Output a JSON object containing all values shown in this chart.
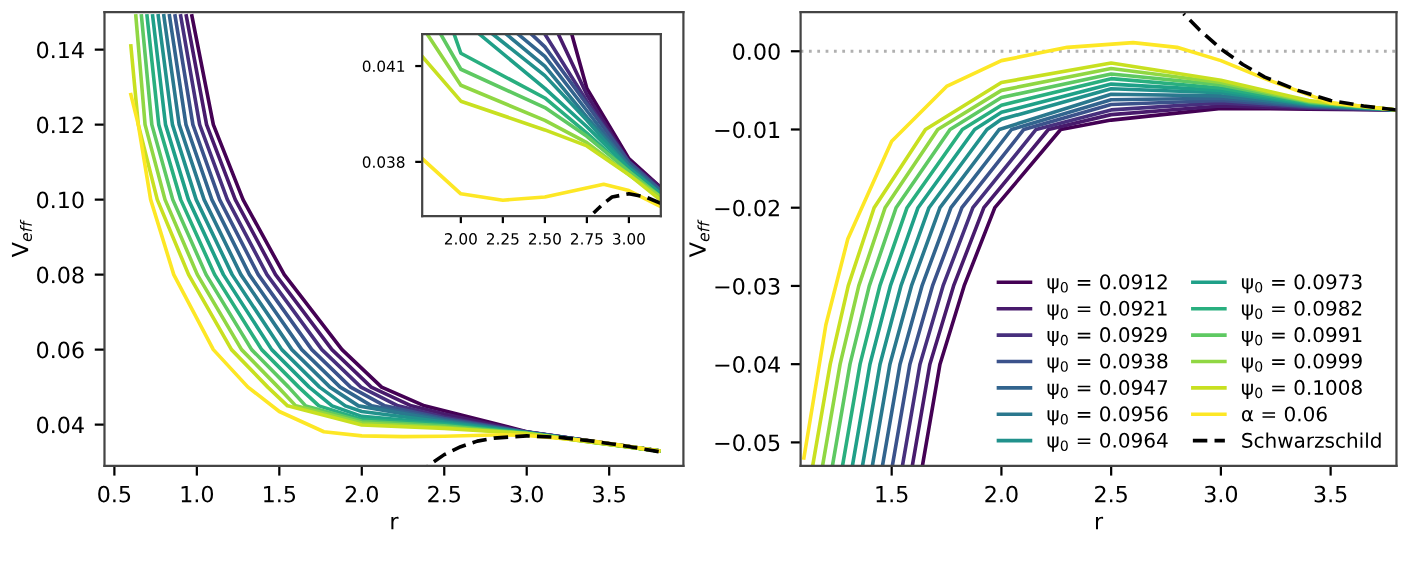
{
  "chart_data": [
    {
      "type": "line",
      "xlabel": "r",
      "ylabel": "V$_{eff}$",
      "xlim": [
        0.44,
        3.95
      ],
      "ylim": [
        0.029,
        0.15
      ],
      "xticks": [
        {
          "value": 0.5,
          "label": "0.5"
        },
        {
          "value": 1,
          "label": "1.0"
        },
        {
          "value": 1.5,
          "label": "1.5"
        },
        {
          "value": 2,
          "label": "2.0"
        },
        {
          "value": 2.5,
          "label": "2.5"
        },
        {
          "value": 3,
          "label": "3.0"
        },
        {
          "value": 3.5,
          "label": "3.5"
        }
      ],
      "yticks": [
        0.04,
        0.06,
        0.08,
        {
          "value": 0.1,
          "label": "0.10"
        },
        0.12,
        0.14
      ],
      "grid": false,
      "legend": false,
      "line_style": "solid",
      "marker": "none",
      "series": [
        {
          "color": "#440154",
          "x": [
            0.97,
            1.1,
            1.28,
            1.53,
            1.88,
            2.12,
            2.38,
            2.5,
            3.0,
            3.8
          ],
          "values": [
            0.149,
            0.12,
            0.1,
            0.08,
            0.06,
            0.05,
            0.045,
            0.0437,
            0.0381,
            0.033
          ]
        },
        {
          "color": "#481a6c",
          "x": [
            0.936,
            1.059,
            1.233,
            1.477,
            1.819,
            2.057,
            2.3,
            2.5,
            3.0,
            3.8
          ],
          "values": [
            0.149,
            0.12,
            0.1,
            0.08,
            0.06,
            0.05,
            0.045,
            0.0428,
            0.038,
            0.033
          ]
        },
        {
          "color": "#472f7d",
          "x": [
            0.902,
            1.017,
            1.185,
            1.425,
            1.758,
            1.995,
            2.22,
            2.5,
            3.0,
            3.8
          ],
          "values": [
            0.149,
            0.12,
            0.1,
            0.08,
            0.06,
            0.05,
            0.045,
            0.042,
            0.038,
            0.033
          ]
        },
        {
          "color": "#3b528b",
          "x": [
            0.868,
            0.976,
            1.138,
            1.372,
            1.697,
            1.932,
            2.14,
            2.5,
            3.0,
            3.8
          ],
          "values": [
            0.149,
            0.12,
            0.1,
            0.08,
            0.06,
            0.05,
            0.045,
            0.0416,
            0.038,
            0.033
          ]
        },
        {
          "color": "#32648e",
          "x": [
            0.834,
            0.934,
            1.091,
            1.319,
            1.636,
            1.869,
            2.06,
            2.5,
            3.0,
            3.8
          ],
          "values": [
            0.149,
            0.12,
            0.1,
            0.08,
            0.06,
            0.05,
            0.045,
            0.0413,
            0.0379,
            0.033
          ]
        },
        {
          "color": "#2a788e",
          "x": [
            0.8,
            0.893,
            1.044,
            1.267,
            1.576,
            1.807,
            1.98,
            2.5,
            3.0,
            3.8
          ],
          "values": [
            0.149,
            0.12,
            0.1,
            0.08,
            0.06,
            0.05,
            0.045,
            0.041,
            0.0379,
            0.033
          ]
        },
        {
          "color": "#21918c",
          "x": [
            0.766,
            0.852,
            0.996,
            1.214,
            1.515,
            1.744,
            1.9,
            2.0,
            2.5,
            3.0,
            3.8
          ],
          "values": [
            0.149,
            0.12,
            0.1,
            0.08,
            0.06,
            0.05,
            0.045,
            0.0435,
            0.0407,
            0.0378,
            0.033
          ]
        },
        {
          "color": "#1fa088",
          "x": [
            0.732,
            0.81,
            0.949,
            1.161,
            1.454,
            1.681,
            1.82,
            2.0,
            2.5,
            3.0,
            3.8
          ],
          "values": [
            0.149,
            0.12,
            0.1,
            0.08,
            0.06,
            0.05,
            0.045,
            0.0422,
            0.0403,
            0.0378,
            0.033
          ]
        },
        {
          "color": "#29af7f",
          "x": [
            0.698,
            0.769,
            0.902,
            1.108,
            1.393,
            1.618,
            1.74,
            2.0,
            2.5,
            3.0,
            3.8
          ],
          "values": [
            0.149,
            0.12,
            0.1,
            0.08,
            0.06,
            0.05,
            0.045,
            0.0414,
            0.04,
            0.0377,
            0.033
          ]
        },
        {
          "color": "#5ec962",
          "x": [
            0.664,
            0.727,
            0.854,
            1.056,
            1.332,
            1.556,
            1.66,
            2.0,
            2.5,
            3.0,
            3.8
          ],
          "values": [
            0.149,
            0.12,
            0.1,
            0.08,
            0.06,
            0.05,
            0.045,
            0.0409,
            0.0397,
            0.0377,
            0.033
          ]
        },
        {
          "color": "#90d743",
          "x": [
            0.63,
            0.686,
            0.807,
            1.003,
            1.271,
            1.493,
            1.6,
            2.0,
            2.5,
            3.0,
            3.8
          ],
          "values": [
            0.149,
            0.12,
            0.1,
            0.08,
            0.06,
            0.05,
            0.045,
            0.0404,
            0.0393,
            0.0376,
            0.033
          ]
        },
        {
          "color": "#c8e020",
          "x": [
            0.6,
            0.645,
            0.76,
            0.95,
            1.21,
            1.43,
            1.55,
            2.0,
            2.5,
            3.0,
            3.8
          ],
          "values": [
            0.141,
            0.12,
            0.1,
            0.08,
            0.06,
            0.05,
            0.045,
            0.0399,
            0.039,
            0.0376,
            0.033
          ]
        },
        {
          "color": "#fde725",
          "x": [
            0.6,
            0.645,
            0.72,
            0.86,
            1.1,
            1.31,
            1.5,
            1.77,
            2.0,
            2.25,
            2.5,
            2.85,
            3.0,
            3.4,
            3.8
          ],
          "values": [
            0.128,
            0.12,
            0.1,
            0.08,
            0.06,
            0.05,
            0.0435,
            0.0381,
            0.037,
            0.0368,
            0.0369,
            0.0373,
            0.0371,
            0.0356,
            0.033
          ]
        },
        {
          "color": "#000000",
          "line_style": "dashed",
          "x": [
            2.4,
            2.5,
            2.6,
            2.7,
            2.8,
            3.0,
            3.2,
            3.4,
            3.6,
            3.8
          ],
          "values": [
            0.029,
            0.032,
            0.0341,
            0.0356,
            0.0364,
            0.037,
            0.0366,
            0.0356,
            0.0343,
            0.0328
          ]
        }
      ]
    },
    {
      "type": "line",
      "xlim": [
        1.77,
        3.19
      ],
      "ylim": [
        0.0363,
        0.042
      ],
      "xticks": [
        {
          "value": 2,
          "label": "2.00"
        },
        {
          "value": 2.25,
          "label": "2.25"
        },
        {
          "value": 2.5,
          "label": "2.50"
        },
        {
          "value": 2.75,
          "label": "2.75"
        },
        {
          "value": 3,
          "label": "3.00"
        }
      ],
      "yticks": [
        0.038,
        0.041
      ],
      "grid": false,
      "legend": false,
      "line_style": "solid",
      "marker": "none",
      "series": [
        {
          "color": "#440154",
          "x": [
            2.66,
            2.75,
            3.0,
            3.19
          ],
          "values": [
            0.042,
            0.0403,
            0.0381,
            0.0372
          ]
        },
        {
          "color": "#481a6c",
          "x": [
            2.58,
            2.75,
            3.0,
            3.19
          ],
          "values": [
            0.042,
            0.0401,
            0.038,
            0.0372
          ]
        },
        {
          "color": "#472f7d",
          "x": [
            2.5,
            2.75,
            3.0,
            3.19
          ],
          "values": [
            0.042,
            0.0399,
            0.038,
            0.0371
          ]
        },
        {
          "color": "#3b528b",
          "x": [
            2.42,
            2.5,
            2.75,
            3.0,
            3.19
          ],
          "values": [
            0.042,
            0.0416,
            0.0398,
            0.038,
            0.0371
          ]
        },
        {
          "color": "#32648e",
          "x": [
            2.34,
            2.5,
            2.75,
            3.0,
            3.19
          ],
          "values": [
            0.042,
            0.0413,
            0.0396,
            0.0379,
            0.0371
          ]
        },
        {
          "color": "#2a788e",
          "x": [
            2.27,
            2.5,
            2.75,
            3.0,
            3.19
          ],
          "values": [
            0.042,
            0.041,
            0.0394,
            0.0379,
            0.037
          ]
        },
        {
          "color": "#21918c",
          "x": [
            2.19,
            2.5,
            2.75,
            3.0,
            3.19
          ],
          "values": [
            0.042,
            0.0407,
            0.0393,
            0.0378,
            0.037
          ]
        },
        {
          "color": "#1fa088",
          "x": [
            2.11,
            2.5,
            2.75,
            3.0,
            3.19
          ],
          "values": [
            0.042,
            0.0403,
            0.0391,
            0.0378,
            0.037
          ]
        },
        {
          "color": "#29af7f",
          "x": [
            1.96,
            2.0,
            2.5,
            2.75,
            3.0,
            3.19
          ],
          "values": [
            0.042,
            0.0414,
            0.04,
            0.0389,
            0.0377,
            0.0369
          ]
        },
        {
          "color": "#5ec962",
          "x": [
            1.88,
            2.0,
            2.5,
            2.75,
            3.0,
            3.19
          ],
          "values": [
            0.042,
            0.0409,
            0.0397,
            0.0388,
            0.0377,
            0.0369
          ]
        },
        {
          "color": "#90d743",
          "x": [
            1.8,
            2.0,
            2.5,
            2.75,
            3.0,
            3.19
          ],
          "values": [
            0.042,
            0.0404,
            0.0393,
            0.0386,
            0.0376,
            0.0369
          ]
        },
        {
          "color": "#c8e020",
          "x": [
            1.77,
            2.0,
            2.5,
            2.75,
            3.0,
            3.19
          ],
          "values": [
            0.0413,
            0.0399,
            0.039,
            0.0385,
            0.0376,
            0.0368
          ]
        },
        {
          "color": "#fde725",
          "x": [
            1.77,
            2.0,
            2.25,
            2.5,
            2.85,
            3.0,
            3.19
          ],
          "values": [
            0.0381,
            0.037,
            0.0368,
            0.0369,
            0.0373,
            0.0371,
            0.0366
          ]
        },
        {
          "color": "#000000",
          "line_style": "dashed",
          "x": [
            2.79,
            2.85,
            2.9,
            3.0,
            3.1,
            3.19
          ],
          "values": [
            0.0364,
            0.0367,
            0.0369,
            0.037,
            0.0369,
            0.0367
          ]
        }
      ]
    },
    {
      "type": "line",
      "xlabel": "r",
      "ylabel": "V$_{eff}$",
      "xlim": [
        1.085,
        3.8
      ],
      "ylim": [
        -0.053,
        0.005
      ],
      "xticks": [
        {
          "value": 1.5,
          "label": "1.5"
        },
        {
          "value": 2,
          "label": "2.0"
        },
        {
          "value": 2.5,
          "label": "2.5"
        },
        {
          "value": 3,
          "label": "3.0"
        },
        {
          "value": 3.5,
          "label": "3.5"
        }
      ],
      "yticks": [
        {
          "value": 0,
          "label": "0.00"
        },
        {
          "value": -0.01,
          "label": "−0.01"
        },
        {
          "value": -0.02,
          "label": "−0.02"
        },
        {
          "value": -0.03,
          "label": "−0.03"
        },
        {
          "value": -0.04,
          "label": "−0.04"
        },
        {
          "value": -0.05,
          "label": "−0.05"
        }
      ],
      "grid": false,
      "legend": "bottom right",
      "line_style": "solid",
      "marker": "none",
      "ref_lines": [
        {
          "axis": "y",
          "value": 0,
          "color": "#b0b0b0",
          "line_style": "dotted"
        }
      ],
      "series": [
        {
          "name": "ψ$_{0}$ = 0.0912",
          "color": "#440154",
          "x": [
            1.64,
            1.72,
            1.83,
            1.97,
            2.27,
            2.5,
            3.0,
            3.4,
            3.8
          ],
          "values": [
            -0.053,
            -0.04,
            -0.03,
            -0.02,
            -0.01,
            -0.0088,
            -0.0073,
            -0.0074,
            -0.0075
          ]
        },
        {
          "name": "ψ$_{0}$ = 0.0921",
          "color": "#481a6c",
          "x": [
            1.594,
            1.674,
            1.782,
            1.92,
            2.214,
            2.5,
            3.0,
            3.4,
            3.8
          ],
          "values": [
            -0.053,
            -0.04,
            -0.03,
            -0.02,
            -0.01,
            -0.0081,
            -0.007,
            -0.0073,
            -0.0075
          ]
        },
        {
          "name": "ψ$_{0}$ = 0.0929",
          "color": "#472f7d",
          "x": [
            1.549,
            1.629,
            1.734,
            1.87,
            2.158,
            2.5,
            3.0,
            3.4,
            3.8
          ],
          "values": [
            -0.053,
            -0.04,
            -0.03,
            -0.02,
            -0.01,
            -0.0075,
            -0.0066,
            -0.0072,
            -0.0075
          ]
        },
        {
          "name": "ψ$_{0}$ = 0.0938",
          "color": "#3b528b",
          "x": [
            1.503,
            1.583,
            1.686,
            1.82,
            2.102,
            2.5,
            3.0,
            3.4,
            3.8
          ],
          "values": [
            -0.053,
            -0.04,
            -0.03,
            -0.02,
            -0.01,
            -0.0068,
            -0.0063,
            -0.0071,
            -0.0075
          ]
        },
        {
          "name": "ψ$_{0}$ = 0.0947",
          "color": "#32648e",
          "x": [
            1.458,
            1.538,
            1.638,
            1.77,
            2.046,
            2.5,
            3.0,
            3.4,
            3.8
          ],
          "values": [
            -0.053,
            -0.04,
            -0.03,
            -0.02,
            -0.01,
            -0.0062,
            -0.006,
            -0.007,
            -0.0075
          ]
        },
        {
          "name": "ψ$_{0}$ = 0.0956",
          "color": "#2a788e",
          "x": [
            1.412,
            1.492,
            1.59,
            1.72,
            1.99,
            2.5,
            3.0,
            3.4,
            3.8
          ],
          "values": [
            -0.053,
            -0.04,
            -0.03,
            -0.02,
            -0.01,
            -0.0055,
            -0.0057,
            -0.0069,
            -0.0075
          ]
        },
        {
          "name": "ψ$_{0}$ = 0.0964",
          "color": "#21918c",
          "x": [
            1.367,
            1.447,
            1.542,
            1.67,
            1.934,
            2.0,
            2.5,
            3.0,
            3.4,
            3.8
          ],
          "values": [
            -0.053,
            -0.04,
            -0.03,
            -0.02,
            -0.01,
            -0.0087,
            -0.0048,
            -0.0053,
            -0.0068,
            -0.0075
          ]
        },
        {
          "name": "ψ$_{0}$ = 0.0973",
          "color": "#1fa088",
          "x": [
            1.321,
            1.401,
            1.494,
            1.62,
            1.878,
            2.0,
            2.5,
            3.0,
            3.4,
            3.8
          ],
          "values": [
            -0.053,
            -0.04,
            -0.03,
            -0.02,
            -0.01,
            -0.0078,
            -0.0042,
            -0.005,
            -0.0067,
            -0.0075
          ]
        },
        {
          "name": "ψ$_{0}$ = 0.0982",
          "color": "#29af7f",
          "x": [
            1.276,
            1.356,
            1.446,
            1.57,
            1.822,
            2.0,
            2.5,
            3.0,
            3.4,
            3.8
          ],
          "values": [
            -0.053,
            -0.04,
            -0.03,
            -0.02,
            -0.01,
            -0.0069,
            -0.0035,
            -0.0047,
            -0.0066,
            -0.0075
          ]
        },
        {
          "name": "ψ$_{0}$ = 0.0991",
          "color": "#5ec962",
          "x": [
            1.23,
            1.31,
            1.398,
            1.52,
            1.766,
            2.0,
            2.5,
            3.0,
            3.4,
            3.8
          ],
          "values": [
            -0.053,
            -0.04,
            -0.03,
            -0.02,
            -0.01,
            -0.0059,
            -0.0029,
            -0.0043,
            -0.0065,
            -0.0075
          ]
        },
        {
          "name": "ψ$_{0}$ = 0.0999",
          "color": "#90d743",
          "x": [
            1.185,
            1.265,
            1.35,
            1.47,
            1.71,
            2.0,
            2.5,
            3.0,
            3.4,
            3.8
          ],
          "values": [
            -0.053,
            -0.04,
            -0.03,
            -0.02,
            -0.01,
            -0.005,
            -0.0022,
            -0.004,
            -0.0064,
            -0.0075
          ]
        },
        {
          "name": "ψ$_{0}$ = 0.1008",
          "color": "#c8e020",
          "x": [
            1.14,
            1.22,
            1.302,
            1.42,
            1.654,
            2.0,
            2.5,
            3.0,
            3.4,
            3.8
          ],
          "values": [
            -0.053,
            -0.04,
            -0.03,
            -0.02,
            -0.01,
            -0.004,
            -0.0015,
            -0.0037,
            -0.0063,
            -0.0075
          ]
        },
        {
          "name": "α = 0.06",
          "color": "#fde725",
          "x": [
            1.1,
            1.2,
            1.3,
            1.5,
            1.75,
            2.0,
            2.3,
            2.6,
            2.8,
            3.0,
            3.2,
            3.5,
            3.8
          ],
          "values": [
            -0.052,
            -0.035,
            -0.024,
            -0.0115,
            -0.0045,
            -0.0012,
            0.0005,
            0.0011,
            0.0005,
            -0.0012,
            -0.0035,
            -0.0066,
            -0.0075
          ]
        },
        {
          "name": "Schwarzschild",
          "color": "#000000",
          "line_style": "dashed",
          "x": [
            2.83,
            2.9,
            3.0,
            3.1,
            3.2,
            3.35,
            3.5,
            3.65,
            3.8
          ],
          "values": [
            0.0048,
            0.0028,
            0.0003,
            -0.0017,
            -0.0033,
            -0.005,
            -0.0063,
            -0.007,
            -0.0075
          ]
        }
      ]
    }
  ]
}
